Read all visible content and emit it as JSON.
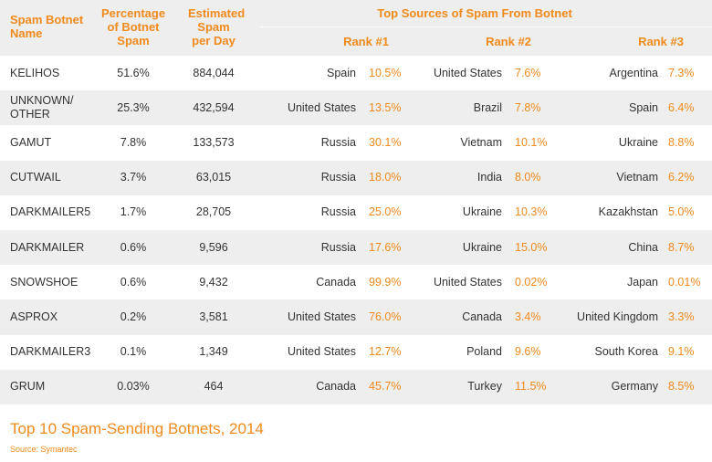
{
  "headers": {
    "name": "Spam Botnet Name",
    "percentage": "Percentage of Botnet Spam",
    "estimated": "Estimated Spam per Day",
    "top_sources": "Top Sources of Spam From Botnet",
    "rank1": "Rank #1",
    "rank2": "Rank #2",
    "rank3": "Rank #3"
  },
  "rows": [
    {
      "name": "KELIHOS",
      "pct": "51.6%",
      "est": "884,044",
      "r1": {
        "country": "Spain",
        "share": "10.5%"
      },
      "r2": {
        "country": "United States",
        "share": "7.6%"
      },
      "r3": {
        "country": "Argentina",
        "share": "7.3%"
      }
    },
    {
      "name": "UNKNOWN/ OTHER",
      "pct": "25.3%",
      "est": "432,594",
      "r1": {
        "country": "United States",
        "share": "13.5%"
      },
      "r2": {
        "country": "Brazil",
        "share": "7.8%"
      },
      "r3": {
        "country": "Spain",
        "share": "6.4%"
      }
    },
    {
      "name": "GAMUT",
      "pct": "7.8%",
      "est": "133,573",
      "r1": {
        "country": "Russia",
        "share": "30.1%"
      },
      "r2": {
        "country": "Vietnam",
        "share": "10.1%"
      },
      "r3": {
        "country": "Ukraine",
        "share": "8.8%"
      }
    },
    {
      "name": "CUTWAIL",
      "pct": "3.7%",
      "est": "63,015",
      "r1": {
        "country": "Russia",
        "share": "18.0%"
      },
      "r2": {
        "country": "India",
        "share": "8.0%"
      },
      "r3": {
        "country": "Vietnam",
        "share": "6.2%"
      }
    },
    {
      "name": "DARKMAILER5",
      "pct": "1.7%",
      "est": "28,705",
      "r1": {
        "country": "Russia",
        "share": "25.0%"
      },
      "r2": {
        "country": "Ukraine",
        "share": "10.3%"
      },
      "r3": {
        "country": "Kazakhstan",
        "share": "5.0%"
      }
    },
    {
      "name": "DARKMAILER",
      "pct": "0.6%",
      "est": "9,596",
      "r1": {
        "country": "Russia",
        "share": "17.6%"
      },
      "r2": {
        "country": "Ukraine",
        "share": "15.0%"
      },
      "r3": {
        "country": "China",
        "share": "8.7%"
      }
    },
    {
      "name": "SNOWSHOE",
      "pct": "0.6%",
      "est": "9,432",
      "r1": {
        "country": "Canada",
        "share": "99.9%"
      },
      "r2": {
        "country": "United States",
        "share": "0.02%"
      },
      "r3": {
        "country": "Japan",
        "share": "0.01%"
      }
    },
    {
      "name": "ASPROX",
      "pct": "0.2%",
      "est": "3,581",
      "r1": {
        "country": "United States",
        "share": "76.0%"
      },
      "r2": {
        "country": "Canada",
        "share": "3.4%"
      },
      "r3": {
        "country": "United Kingdom",
        "share": "3.3%"
      }
    },
    {
      "name": "DARKMAILER3",
      "pct": "0.1%",
      "est": "1,349",
      "r1": {
        "country": "United States",
        "share": "12.7%"
      },
      "r2": {
        "country": "Poland",
        "share": "9.6%"
      },
      "r3": {
        "country": "South Korea",
        "share": "9.1%"
      }
    },
    {
      "name": "GRUM",
      "pct": "0.03%",
      "est": "464",
      "r1": {
        "country": "Canada",
        "share": "45.7%"
      },
      "r2": {
        "country": "Turkey",
        "share": "11.5%"
      },
      "r3": {
        "country": "Germany",
        "share": "8.5%"
      }
    }
  ],
  "footer": {
    "title": "Top 10 Spam-Sending Botnets, 2014",
    "source": "Source: Symantec"
  },
  "colors": {
    "accent": "#f08a1c",
    "stripe": "#eeeeee",
    "text": "#333333"
  }
}
